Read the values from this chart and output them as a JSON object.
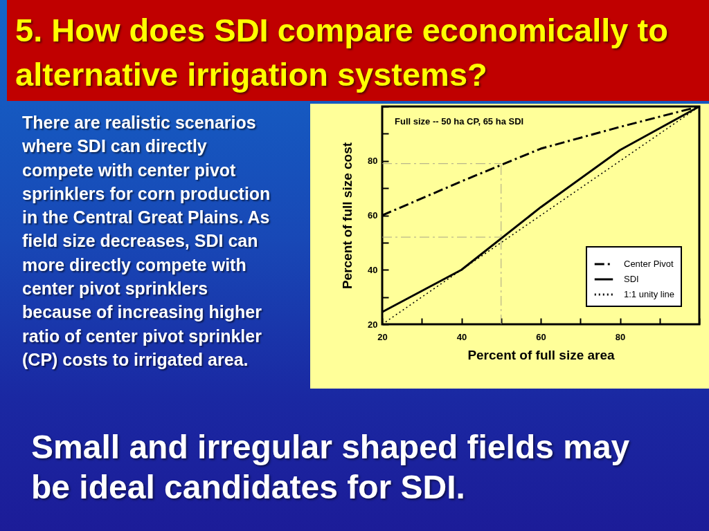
{
  "chart_data": {
    "type": "line",
    "title": "5. How does SDI compare economically to alternative irrigation systems?",
    "xlabel": "Percent of full size area",
    "ylabel": "Percent of full size cost",
    "annotations": [
      "Full size -- 50 ha CP,  65 ha SDI",
      "There are realistic scenarios where SDI can directly compete with center pivot sprinklers for corn production in the Central Great Plains.  As field size decreases, SDI can more directly compete with center pivot sprinklers because of increasing higher ratio of center pivot sprinkler (CP) costs to irrigated area.",
      "Small and irregular shaped fields may be ideal candidates for SDI."
    ],
    "series": [
      {
        "name": "Center Pivot",
        "color": "#000000",
        "line_style": "dashed",
        "x": [
          20,
          40,
          60,
          80,
          100
        ],
        "values": [
          60,
          72.5,
          84.5,
          92.5,
          100
        ]
      },
      {
        "name": "SDI",
        "color": "#000000",
        "line_style": "solid",
        "x": [
          20,
          40,
          60,
          80,
          100
        ],
        "values": [
          24.5,
          40,
          63,
          84,
          100
        ]
      },
      {
        "name": "1:1 unity line",
        "color": "#000000",
        "line_style": "dotted",
        "x": [
          20,
          100
        ],
        "values": [
          20,
          100
        ]
      }
    ],
    "xlim": [
      20,
      100
    ],
    "ylim": [
      20,
      100
    ],
    "xticks": [
      20,
      {
        "value": 30,
        "label": null
      },
      40,
      {
        "value": 50,
        "label": null
      },
      60,
      {
        "value": 70,
        "label": null
      },
      80,
      {
        "value": 90,
        "label": null
      },
      {
        "value": 100,
        "label": null
      }
    ],
    "yticks": [
      20,
      {
        "value": 30,
        "label": null
      },
      40,
      {
        "value": 50,
        "label": null
      },
      60,
      {
        "value": 70,
        "label": null
      },
      80,
      {
        "value": 90,
        "label": null
      },
      {
        "value": 100,
        "label": null
      }
    ],
    "ref_lines": [
      {
        "axis": "x",
        "value": 50,
        "color": "#a8a488",
        "line_style": "dashed"
      },
      {
        "axis": "y",
        "value": 79,
        "color": "#a8a488",
        "line_style": "dashed"
      },
      {
        "axis": "y",
        "value": 52,
        "color": "#a8a488",
        "line_style": "dashed"
      }
    ],
    "legend": "bottom right"
  }
}
